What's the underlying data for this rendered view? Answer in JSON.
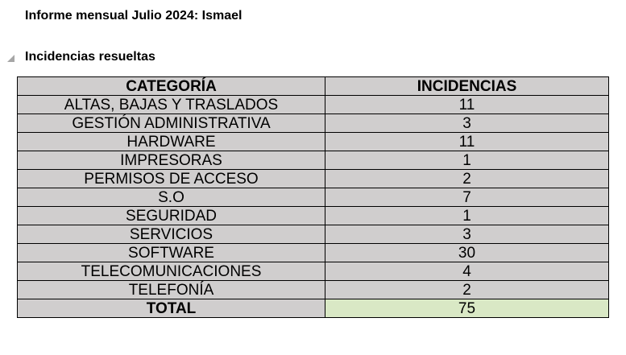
{
  "report": {
    "title": "Informe mensual Julio 2024: Ismael"
  },
  "section": {
    "title": "Incidencias resueltas",
    "collapse_icon": "collapse-triangle-icon"
  },
  "table": {
    "headers": [
      "CATEGORÍA",
      "INCIDENCIAS"
    ],
    "rows": [
      {
        "category": "ALTAS, BAJAS Y TRASLADOS",
        "count": "11"
      },
      {
        "category": "GESTIÓN ADMINISTRATIVA",
        "count": "3"
      },
      {
        "category": "HARDWARE",
        "count": "11"
      },
      {
        "category": "IMPRESORAS",
        "count": "1"
      },
      {
        "category": "PERMISOS DE ACCESO",
        "count": "2"
      },
      {
        "category": "S.O",
        "count": "7"
      },
      {
        "category": "SEGURIDAD",
        "count": "1"
      },
      {
        "category": "SERVICIOS",
        "count": "3"
      },
      {
        "category": "SOFTWARE",
        "count": "30"
      },
      {
        "category": "TELECOMUNICACIONES",
        "count": "4"
      },
      {
        "category": "TELEFONÍA",
        "count": "2"
      }
    ],
    "total": {
      "label": "TOTAL",
      "count": "75"
    }
  },
  "colors": {
    "cell_background": "#d0cece",
    "total_value_background": "#d9e8c5",
    "border": "#000000"
  }
}
